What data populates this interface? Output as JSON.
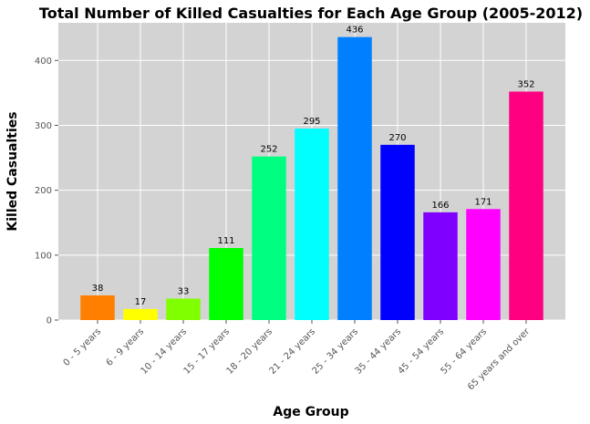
{
  "chart_data": {
    "type": "bar",
    "title": "Total Number of Killed Casualties for Each Age Group (2005-2012)",
    "xlabel": "Age Group",
    "ylabel": "Killed Casualties",
    "categories": [
      "0 - 5 years",
      "6 - 9 years",
      "10 - 14 years",
      "15 - 17 years",
      "18 - 20 years",
      "21 - 24 years",
      "25 - 34 years",
      "35 - 44 years",
      "45 - 54 years",
      "55 - 64 years",
      "65 years and over"
    ],
    "values": [
      38,
      17,
      33,
      111,
      252,
      295,
      436,
      270,
      166,
      171,
      352
    ],
    "colors": [
      "#ff7f00",
      "#ffff00",
      "#80ff00",
      "#00ff00",
      "#00ff80",
      "#00ffff",
      "#0080ff",
      "#0000ff",
      "#7f00ff",
      "#ff00ff",
      "#ff0080"
    ],
    "ylim": [
      0,
      458
    ],
    "yticks": [
      0,
      100,
      200,
      300,
      400
    ],
    "grid": true,
    "plot_background": "#d3d3d3",
    "grid_color": "#ffffff"
  }
}
